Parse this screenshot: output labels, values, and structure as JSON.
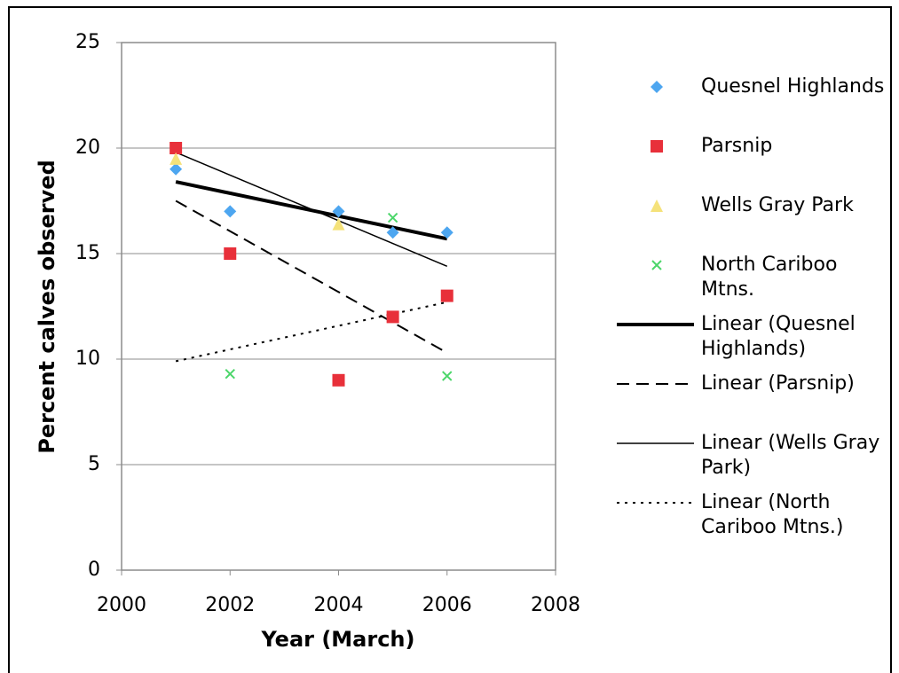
{
  "chart_data": {
    "type": "scatter",
    "x_label": "Year (March)",
    "y_label": "Percent calves observed",
    "xlim": [
      2000,
      2008
    ],
    "xticks": [
      2000,
      2002,
      2004,
      2006,
      2008
    ],
    "ylim": [
      0,
      25
    ],
    "yticks": [
      0,
      5,
      10,
      15,
      20,
      25
    ],
    "grid": true,
    "series": [
      {
        "name": "Quesnel Highlands",
        "color": "#4da6f0",
        "marker": "diamond",
        "x": [
          2001,
          2002,
          2004,
          2005,
          2006
        ],
        "values": [
          19,
          17,
          17,
          16,
          16
        ]
      },
      {
        "name": "Parsnip",
        "color": "#e8303a",
        "marker": "square",
        "x": [
          2001,
          2002,
          2004,
          2005,
          2006
        ],
        "values": [
          20,
          15,
          9,
          12,
          13
        ]
      },
      {
        "name": "Wells Gray Park",
        "color": "#f5e27a",
        "marker": "triangle",
        "x": [
          2001,
          2004
        ],
        "values": [
          19.5,
          16.4
        ]
      },
      {
        "name": "North Cariboo Mtns.",
        "color": "#4cd66a",
        "marker": "cross",
        "x": [
          2002,
          2005,
          2006
        ],
        "values": [
          9.3,
          16.7,
          9.2
        ]
      }
    ],
    "trendlines": [
      {
        "name": "Linear (Quesnel Highlands)",
        "color": "#000000",
        "style": "thick",
        "x": [
          2001,
          2006
        ],
        "values": [
          18.4,
          15.7
        ]
      },
      {
        "name": "Linear (Parsnip)",
        "color": "#000000",
        "style": "dashed",
        "x": [
          2001,
          2006
        ],
        "values": [
          17.5,
          10.3
        ]
      },
      {
        "name": "Linear (Wells Gray Park)",
        "color": "#000000",
        "style": "thin",
        "x": [
          2001,
          2006
        ],
        "values": [
          19.8,
          14.4
        ]
      },
      {
        "name": "Linear (North Cariboo Mtns.)",
        "color": "#000000",
        "style": "dotted",
        "x": [
          2001,
          2006
        ],
        "values": [
          9.9,
          12.7
        ]
      }
    ]
  }
}
